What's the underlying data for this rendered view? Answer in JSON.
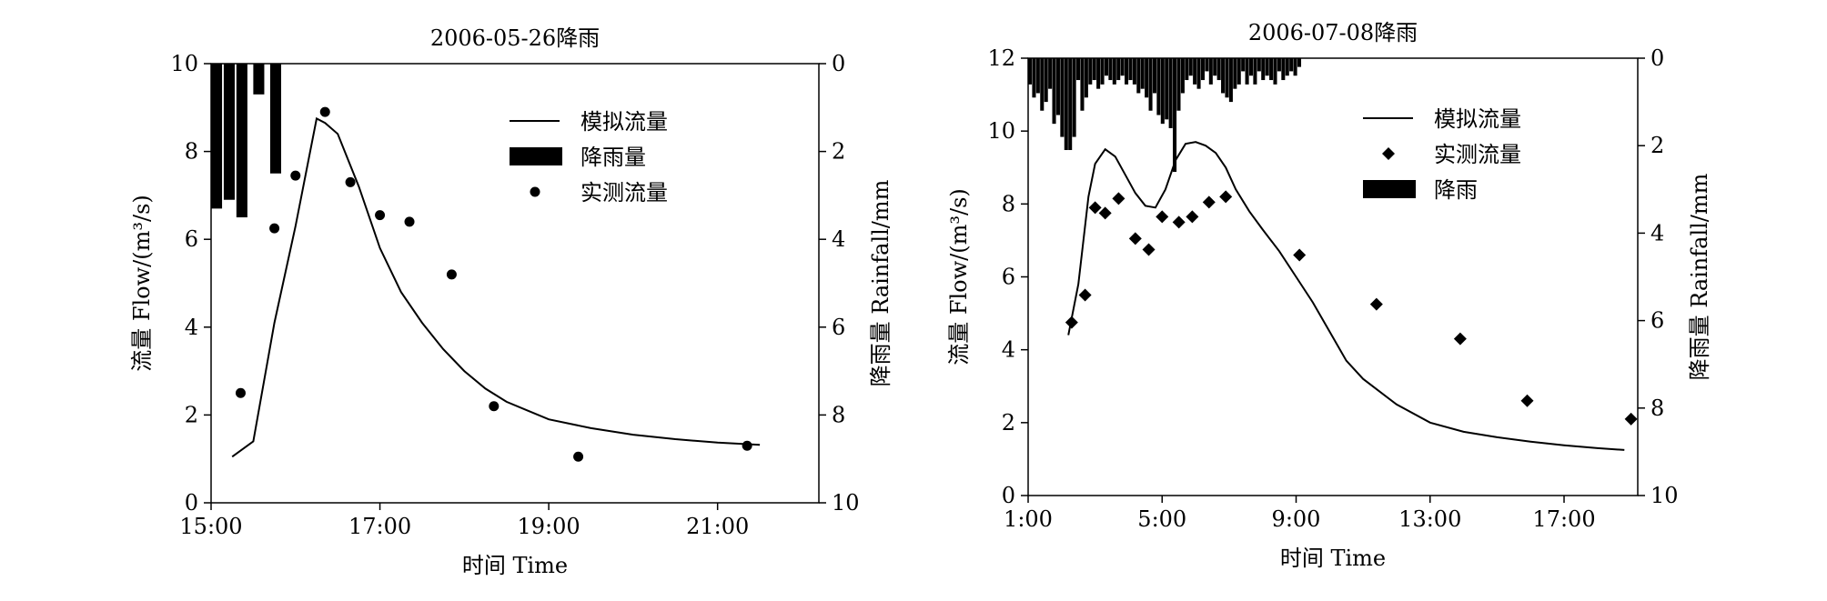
{
  "chart_data": [
    {
      "type": "line",
      "title": "2006-05-26降雨",
      "xlabel": "时间 Time",
      "ylabel": "流量 Flow/(m³/s)",
      "y2label": "降雨量 Rainfall/mm",
      "x_unit": "hour",
      "xlim": [
        15,
        22.2
      ],
      "x_ticks": [
        {
          "value": 15,
          "label": "15:00"
        },
        {
          "value": 17,
          "label": "17:00"
        },
        {
          "value": 19,
          "label": "19:00"
        },
        {
          "value": 21,
          "label": "21:00"
        }
      ],
      "ylim": [
        0,
        10
      ],
      "y_ticks": [
        0,
        2,
        4,
        6,
        8,
        10
      ],
      "y2lim": [
        0,
        10
      ],
      "y2_inverted": true,
      "y2_ticks": [
        0,
        2,
        4,
        6,
        8,
        10
      ],
      "legend": {
        "placement": "top-right",
        "order": [
          "simulated",
          "rain",
          "observed"
        ]
      },
      "series": [
        {
          "key": "simulated",
          "name": "模拟流量",
          "kind": "line",
          "color": "#000000",
          "x": [
            15.25,
            15.5,
            15.75,
            16.0,
            16.25,
            16.35,
            16.5,
            16.75,
            17.0,
            17.25,
            17.5,
            17.75,
            18.0,
            18.25,
            18.5,
            18.75,
            19.0,
            19.5,
            20.0,
            20.5,
            21.0,
            21.5
          ],
          "y": [
            1.05,
            1.4,
            4.1,
            6.3,
            8.75,
            8.65,
            8.4,
            7.2,
            5.8,
            4.8,
            4.1,
            3.5,
            3.0,
            2.6,
            2.3,
            2.1,
            1.9,
            1.7,
            1.55,
            1.45,
            1.37,
            1.32
          ]
        },
        {
          "key": "rain",
          "name": "降雨量",
          "kind": "bar",
          "axis": "y2",
          "color": "#000000",
          "x": [
            15.0,
            15.15,
            15.3,
            15.5,
            15.7
          ],
          "width": 0.13,
          "values": [
            3.3,
            3.1,
            3.5,
            0.7,
            2.5
          ]
        },
        {
          "key": "observed",
          "name": "实测流量",
          "kind": "scatter",
          "marker": "circle",
          "color": "#000000",
          "x": [
            15.35,
            15.75,
            16.0,
            16.35,
            16.65,
            17.0,
            17.35,
            17.85,
            18.35,
            19.35,
            21.35
          ],
          "y": [
            2.5,
            6.25,
            7.45,
            8.9,
            7.3,
            6.55,
            6.4,
            5.2,
            2.2,
            1.05,
            1.3
          ]
        }
      ]
    },
    {
      "type": "line",
      "title": "2006-07-08降雨",
      "xlabel": "时间 Time",
      "ylabel": "流量 Flow/(m³/s)",
      "y2label": "降雨量 Rainfall/mm",
      "x_unit": "hour",
      "xlim": [
        1,
        19.2
      ],
      "x_ticks": [
        {
          "value": 1,
          "label": "1:00"
        },
        {
          "value": 5,
          "label": "5:00"
        },
        {
          "value": 9,
          "label": "9:00"
        },
        {
          "value": 13,
          "label": "13:00"
        },
        {
          "value": 17,
          "label": "17:00"
        }
      ],
      "ylim": [
        0,
        12
      ],
      "y_ticks": [
        0,
        2,
        4,
        6,
        8,
        10,
        12
      ],
      "y2lim": [
        0,
        10
      ],
      "y2_inverted": true,
      "y2_ticks": [
        0,
        2,
        4,
        6,
        8,
        10
      ],
      "legend": {
        "placement": "top-right",
        "order": [
          "simulated",
          "observed",
          "rain"
        ]
      },
      "series": [
        {
          "key": "simulated",
          "name": "模拟流量",
          "kind": "line",
          "color": "#000000",
          "x": [
            2.2,
            2.5,
            2.8,
            3.0,
            3.3,
            3.6,
            3.9,
            4.2,
            4.5,
            4.8,
            5.1,
            5.4,
            5.7,
            6.0,
            6.3,
            6.6,
            6.9,
            7.2,
            7.6,
            8.0,
            8.5,
            9.0,
            9.5,
            10.0,
            10.5,
            11.0,
            12.0,
            13.0,
            14.0,
            15.0,
            16.0,
            17.0,
            18.0,
            18.8
          ],
          "y": [
            4.4,
            5.8,
            8.2,
            9.1,
            9.5,
            9.3,
            8.8,
            8.3,
            7.95,
            7.9,
            8.4,
            9.2,
            9.65,
            9.7,
            9.6,
            9.4,
            9.0,
            8.4,
            7.8,
            7.3,
            6.7,
            6.0,
            5.3,
            4.5,
            3.7,
            3.2,
            2.5,
            2.0,
            1.75,
            1.6,
            1.48,
            1.38,
            1.3,
            1.25
          ]
        },
        {
          "key": "observed",
          "name": "实测流量",
          "kind": "scatter",
          "marker": "diamond",
          "color": "#000000",
          "x": [
            2.3,
            2.7,
            3.0,
            3.3,
            3.7,
            4.2,
            4.6,
            5.0,
            5.5,
            5.9,
            6.4,
            6.9,
            9.1,
            11.4,
            13.9,
            15.9,
            19.0
          ],
          "y": [
            4.75,
            5.5,
            7.9,
            7.75,
            8.15,
            7.05,
            6.75,
            7.65,
            7.5,
            7.65,
            8.05,
            8.2,
            6.6,
            5.25,
            4.3,
            2.6,
            2.1
          ]
        },
        {
          "key": "rain",
          "name": "降雨",
          "kind": "bar",
          "axis": "y2",
          "color": "#000000",
          "x": [
            1.0,
            1.12,
            1.24,
            1.36,
            1.48,
            1.6,
            1.72,
            1.84,
            1.96,
            2.08,
            2.2,
            2.32,
            2.44,
            2.56,
            2.68,
            2.8,
            2.92,
            3.04,
            3.16,
            3.28,
            3.4,
            3.52,
            3.64,
            3.76,
            3.88,
            4.0,
            4.12,
            4.24,
            4.36,
            4.48,
            4.6,
            4.72,
            4.84,
            4.96,
            5.08,
            5.2,
            5.32,
            5.44,
            5.56,
            5.68,
            5.8,
            5.92,
            6.04,
            6.16,
            6.28,
            6.4,
            6.52,
            6.64,
            6.76,
            6.88,
            7.0,
            7.12,
            7.24,
            7.36,
            7.48,
            7.6,
            7.72,
            7.84,
            7.96,
            8.08,
            8.2,
            8.32,
            8.44,
            8.56,
            8.68,
            8.8,
            8.92,
            9.04
          ],
          "width": 0.11,
          "values": [
            0.6,
            0.9,
            0.8,
            1.2,
            1.0,
            0.7,
            1.5,
            1.3,
            1.8,
            2.1,
            2.1,
            1.8,
            0.5,
            1.2,
            0.9,
            0.6,
            0.5,
            0.7,
            0.6,
            0.4,
            0.5,
            0.6,
            0.5,
            0.4,
            0.6,
            0.5,
            0.6,
            0.8,
            0.7,
            0.9,
            1.2,
            0.8,
            1.3,
            1.5,
            1.4,
            1.6,
            2.6,
            1.2,
            0.8,
            0.5,
            0.4,
            0.6,
            0.7,
            0.5,
            0.3,
            0.6,
            0.4,
            0.5,
            0.8,
            0.9,
            1.0,
            0.7,
            0.6,
            0.3,
            0.6,
            0.4,
            0.6,
            0.3,
            0.5,
            0.4,
            0.5,
            0.6,
            0.3,
            0.5,
            0.4,
            0.3,
            0.4,
            0.2
          ]
        }
      ]
    }
  ]
}
